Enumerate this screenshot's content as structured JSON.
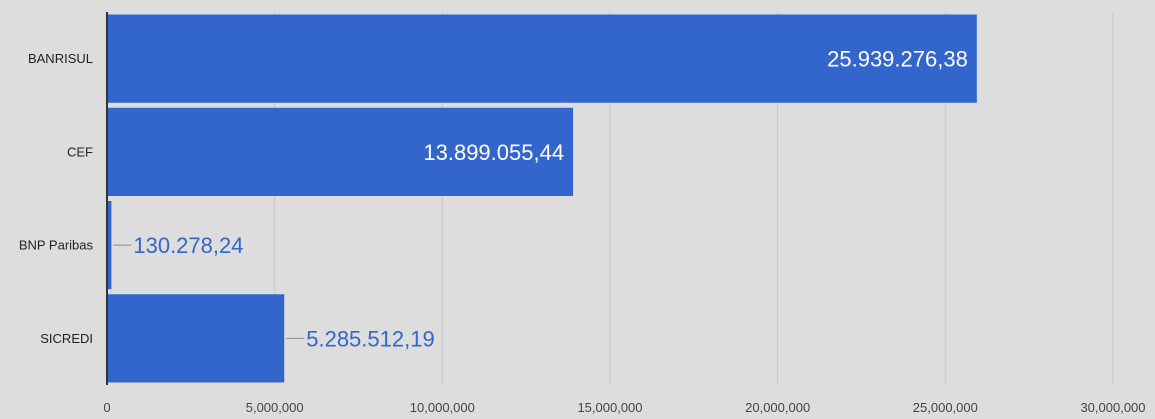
{
  "chart_data": {
    "type": "bar",
    "orientation": "horizontal",
    "categories": [
      "BANRISUL",
      "CEF",
      "BNP Paribas",
      "SICREDI"
    ],
    "values": [
      25939276.38,
      13899055.44,
      130278.24,
      5285512.19
    ],
    "value_labels": [
      "25.939.276,38",
      "13.899.055,44",
      "130.278,24",
      "5.285.512,19"
    ],
    "x_ticks": [
      0,
      5000000,
      10000000,
      15000000,
      20000000,
      25000000,
      30000000
    ],
    "x_tick_labels": [
      "0",
      "5,000,000",
      "10,000,000",
      "15,000,000",
      "20,000,000",
      "25,000,000",
      "30,000,000"
    ],
    "xlim": [
      0,
      30000000
    ],
    "grid": true,
    "legend": "none",
    "title": "",
    "xlabel": "",
    "ylabel": ""
  },
  "colors": {
    "background": "#dddddd",
    "bar": "#3366cc",
    "gridline": "#c8c8c8",
    "axis": "#333333",
    "label_inside": "#ffffff",
    "label_outside": "#3366cc"
  }
}
